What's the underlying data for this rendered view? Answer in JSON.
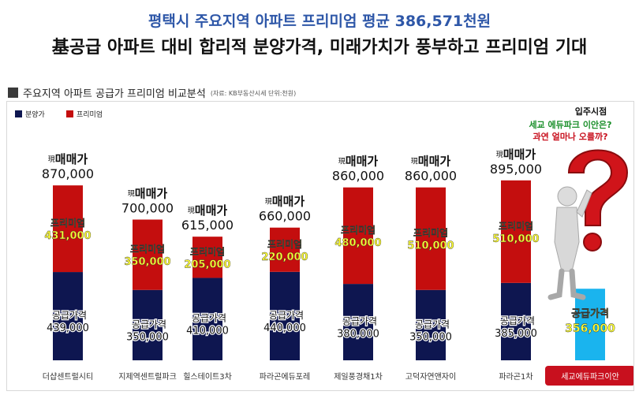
{
  "header": {
    "headline": "평택시 주요지역 아파트 프리미엄 평균 386,571천원",
    "subheadline": "基공급 아파트 대비 합리적 분양가격, 미래가치가 풍부하고 프리미엄 기대"
  },
  "section": {
    "title": "주요지역 아파트 공급가 프리미엄 비교분석",
    "note": "(자료: KB부동산시세 단위:천원)"
  },
  "colors": {
    "supply": "#0e1650",
    "premium": "#c40e0e",
    "target": "#1ab4ee",
    "highlight": "#ffff33",
    "target_label_bg": "#c8101e"
  },
  "chart_data": {
    "type": "bar",
    "stacked": true,
    "legend": [
      "분양가",
      "프리미엄"
    ],
    "legend_position": "top-left",
    "categories": [
      "더샵센트럴시티",
      "지제역센트럴파크",
      "힐스테이트3차",
      "파라곤에듀포레",
      "제일풍경채1차",
      "고덕자연앤자이",
      "파라곤1차",
      "세교에듀파크이안"
    ],
    "series": [
      {
        "name": "분양가",
        "values": [
          439000,
          350000,
          410000,
          440000,
          380000,
          350000,
          385000,
          356000
        ]
      },
      {
        "name": "프리미엄",
        "values": [
          431000,
          350000,
          205000,
          220000,
          480000,
          510000,
          510000,
          null
        ]
      }
    ],
    "market_price_prefix": "現",
    "market_price_label": "매매가",
    "market_prices": [
      "870,000",
      "700,000",
      "615,000",
      "660,000",
      "860,000",
      "860,000",
      "895,000",
      null
    ],
    "premium_label": "프리미엄",
    "premium_texts": [
      "431,000",
      "350,000",
      "205,000",
      "220,000",
      "480,000",
      "510,000",
      "510,000",
      null
    ],
    "supply_label": "공급가격",
    "supply_texts": [
      "439,000",
      "350,000",
      "410,000",
      "440,000",
      "380,000",
      "350,000",
      "385,000",
      "356,000"
    ]
  },
  "callout": {
    "line1": "입주시점",
    "line2": "세교 에듀파크 이안은?",
    "line3": "과연 얼마나 오를까?"
  }
}
